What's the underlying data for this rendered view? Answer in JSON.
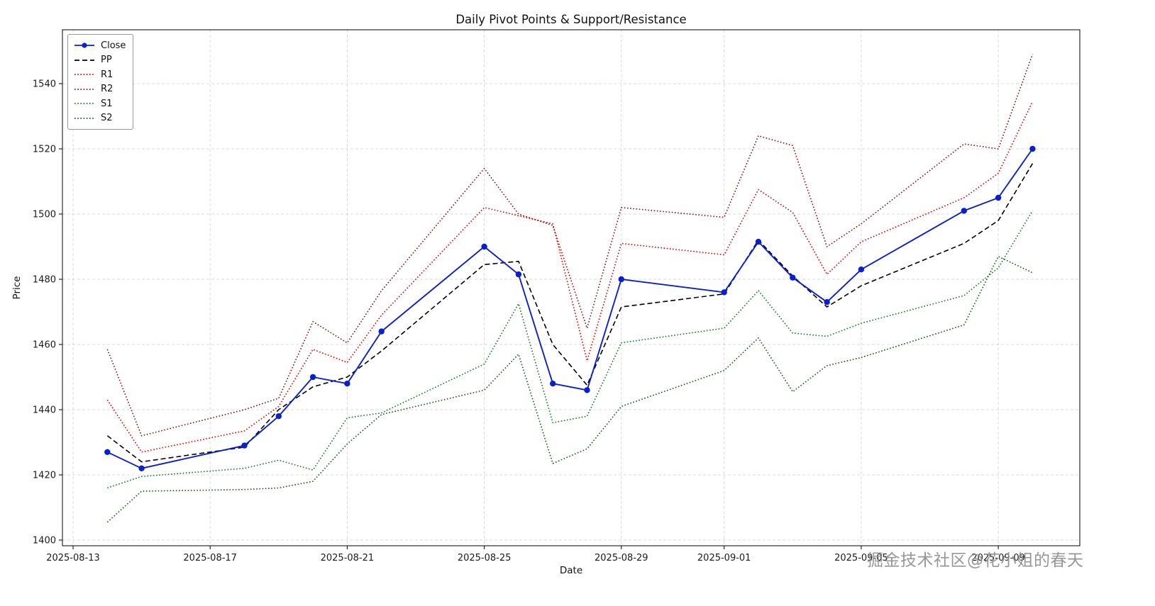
{
  "figure": {
    "title": "Daily Pivot Points & Support/Resistance",
    "watermark": "掘金技术社区@花小姐的春天"
  },
  "chart_data": {
    "type": "line",
    "title": "Daily Pivot Points & Support/Resistance",
    "xlabel": "Date",
    "ylabel": "Price",
    "grid": true,
    "legend_position": "upper left",
    "ylim": [
      1398,
      1557
    ],
    "y_ticks": [
      1400,
      1420,
      1440,
      1460,
      1480,
      1500,
      1520,
      1540
    ],
    "x_tick_labels": [
      "2025-08-13",
      "2025-08-17",
      "2025-08-21",
      "2025-08-25",
      "2025-08-29",
      "2025-09-01",
      "2025-09-05",
      "2025-09-09"
    ],
    "x": [
      "2025-08-14",
      "2025-08-15",
      "2025-08-18",
      "2025-08-19",
      "2025-08-20",
      "2025-08-21",
      "2025-08-22",
      "2025-08-25",
      "2025-08-26",
      "2025-08-27",
      "2025-08-28",
      "2025-08-29",
      "2025-09-01",
      "2025-09-02",
      "2025-09-03",
      "2025-09-04",
      "2025-09-05",
      "2025-09-08",
      "2025-09-09",
      "2025-09-10"
    ],
    "series": [
      {
        "name": "Close",
        "color": "#0b1fcd",
        "style": "solid",
        "marker": true,
        "values": [
          1427,
          1422,
          1429,
          1438,
          1450,
          1448,
          1464,
          1490,
          1481.5,
          1448,
          1446,
          1480,
          1476,
          1491.5,
          1480.5,
          1473,
          1483,
          1501,
          1505,
          1520
        ]
      },
      {
        "name": "PP",
        "color": "#000000",
        "style": "dashed",
        "marker": false,
        "values": [
          1432,
          1424,
          1428.5,
          1440,
          1447,
          1450,
          1458,
          1484.5,
          1485.5,
          1460,
          1447.5,
          1471.5,
          1475.5,
          1492,
          1481,
          1471.5,
          1478,
          1491,
          1498,
          1515.5
        ]
      },
      {
        "name": "R1",
        "color": "#e00000",
        "style": "dotted",
        "marker": false,
        "values": [
          1443,
          1427,
          1433.5,
          1441,
          1458.5,
          1454.5,
          1469,
          1502,
          1499.5,
          1497,
          1455,
          1491,
          1487.5,
          1507.5,
          1500.5,
          1481.5,
          1491.5,
          1505,
          1512.5,
          1534.5
        ]
      },
      {
        "name": "R2",
        "color": "#8b1212",
        "style": "dotted",
        "marker": false,
        "values": [
          1458.5,
          1432,
          1440,
          1443.5,
          1467,
          1460.5,
          1476.5,
          1514,
          1500,
          1496.5,
          1465,
          1502,
          1499,
          1524,
          1521,
          1490,
          1497,
          1521.5,
          1520,
          1549
        ]
      },
      {
        "name": "S1",
        "color": "#0f7d1f",
        "style": "dotted",
        "marker": false,
        "values": [
          1416,
          1419.5,
          1422,
          1424.5,
          1421.5,
          1437.5,
          1439,
          1454,
          1472.5,
          1436,
          1438,
          1460.5,
          1465,
          1476.5,
          1463.5,
          1462.5,
          1466.5,
          1475,
          1483.5,
          1501
        ]
      },
      {
        "name": "S2",
        "color": "#14591c",
        "style": "dotted",
        "marker": false,
        "values": [
          1405.5,
          1415,
          1415.5,
          1416,
          1418,
          1429.5,
          1438.5,
          1446,
          1457,
          1423.5,
          1428,
          1441,
          1452,
          1462,
          1445.5,
          1453.5,
          1456,
          1466,
          1487,
          1482
        ]
      }
    ]
  }
}
